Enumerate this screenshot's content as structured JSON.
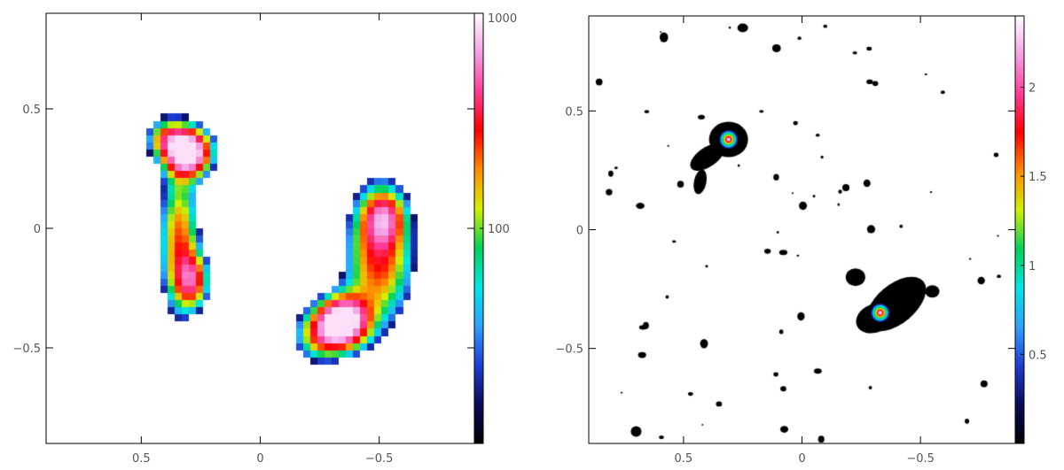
{
  "chart_data": [
    {
      "type": "heatmap",
      "xlim": [
        0.9,
        -0.9
      ],
      "ylim": [
        -0.9,
        0.9
      ],
      "x_ticks": [
        0.5,
        0,
        -0.5
      ],
      "y_ticks": [
        0.5,
        0,
        -0.5
      ],
      "x_tick_labels": [
        "0.5",
        "0",
        "−0.5"
      ],
      "y_tick_labels": [
        "0.5",
        "0",
        "−0.5"
      ],
      "colorbar": {
        "scale": "log",
        "ticks": [
          100,
          1000
        ],
        "tick_labels": [
          "100",
          "1000"
        ]
      },
      "grid": false,
      "sources": [
        {
          "x": 0.3,
          "y": 0.32,
          "peak": 1000
        },
        {
          "x": -0.35,
          "y": -0.39,
          "peak": 900
        }
      ]
    },
    {
      "type": "heatmap",
      "xlim": [
        0.9,
        -0.9
      ],
      "ylim": [
        -0.9,
        0.9
      ],
      "x_ticks": [
        0.5,
        0,
        -0.5
      ],
      "y_ticks": [
        0.5,
        0,
        -0.5
      ],
      "x_tick_labels": [
        "0.5",
        "0",
        "−0.5"
      ],
      "y_tick_labels": [
        "0.5",
        "0",
        "−0.5"
      ],
      "colorbar": {
        "scale": "linear",
        "range": [
          0,
          2.4
        ],
        "ticks": [
          0.5,
          1,
          1.5,
          2
        ],
        "tick_labels": [
          "0.5",
          "1",
          "1.5",
          "2"
        ]
      },
      "grid": false,
      "sources": [
        {
          "x": 0.31,
          "y": 0.38,
          "peak": 2.4
        },
        {
          "x": -0.33,
          "y": -0.35,
          "peak": 2.4
        }
      ]
    }
  ],
  "colors": {
    "frame": "#000000",
    "tick_text": "#555555",
    "background": "#ffffff",
    "colormap": [
      "#000000",
      "#0a0a5a",
      "#1e3cd2",
      "#2ea0ff",
      "#00e6e6",
      "#00d25a",
      "#d2f000",
      "#ff8c00",
      "#ff0000",
      "#ff3c96",
      "#f5a0e6",
      "#ffffff"
    ]
  }
}
